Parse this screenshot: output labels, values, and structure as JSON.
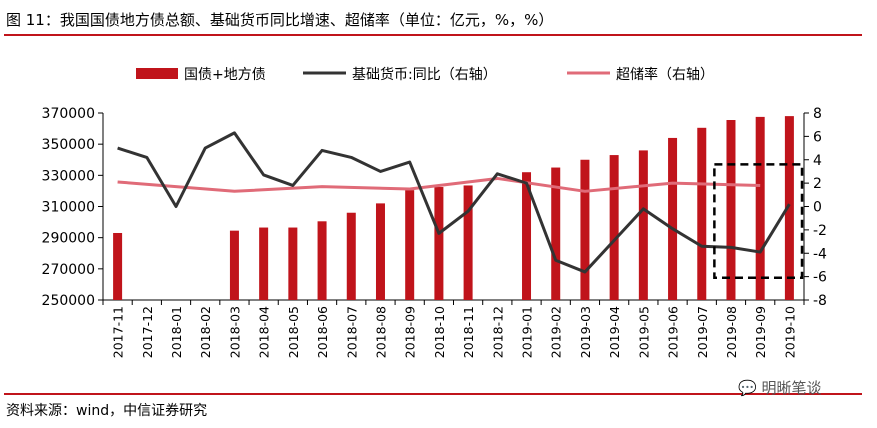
{
  "header": {
    "title": "图 11：我国国债地方债总额、基础货币同比增速、超储率（单位：亿元，%，%）"
  },
  "footer": {
    "source": "资料来源：wind，中信证券研究",
    "watermark": "明晰笔谈"
  },
  "colors": {
    "bar": "#c0141b",
    "line_base_money": "#333333",
    "line_excess_reserve": "#e06b78",
    "rule": "#c0141b"
  },
  "chart_data": {
    "type": "bar",
    "categories": [
      "2017-11",
      "2017-12",
      "2018-01",
      "2018-02",
      "2018-03",
      "2018-04",
      "2018-05",
      "2018-06",
      "2018-07",
      "2018-08",
      "2018-09",
      "2018-10",
      "2018-11",
      "2018-12",
      "2019-01",
      "2019-02",
      "2019-03",
      "2019-04",
      "2019-05",
      "2019-06",
      "2019-07",
      "2019-08",
      "2019-09",
      "2019-10"
    ],
    "legend": [
      "国债+地方债",
      "基础货币:同比（右轴）",
      "超储率（右轴）"
    ],
    "series": [
      {
        "name": "国债+地方债",
        "type": "bar",
        "axis": "left",
        "values": [
          293000,
          null,
          null,
          null,
          294500,
          296500,
          296500,
          300500,
          306000,
          312000,
          320500,
          322500,
          323500,
          null,
          332000,
          335000,
          340000,
          343000,
          346000,
          354000,
          360500,
          365500,
          367500,
          368000
        ]
      },
      {
        "name": "基础货币:同比（右轴）",
        "type": "line",
        "axis": "right",
        "values": [
          5.0,
          4.2,
          0.0,
          5.0,
          6.3,
          2.7,
          1.8,
          4.8,
          4.2,
          3.0,
          3.8,
          -2.3,
          -0.4,
          2.8,
          2.0,
          -4.6,
          -5.6,
          -2.9,
          -0.2,
          -1.9,
          -3.4,
          -3.5,
          -3.9,
          0.2
        ]
      },
      {
        "name": "超储率（右轴）",
        "type": "line",
        "axis": "right",
        "values": [
          2.1,
          null,
          null,
          null,
          1.3,
          null,
          null,
          1.7,
          null,
          null,
          1.5,
          null,
          null,
          2.4,
          null,
          null,
          1.3,
          null,
          null,
          2.0,
          null,
          null,
          1.8,
          null
        ]
      }
    ],
    "y_left": {
      "ylim": [
        250000,
        370000
      ],
      "ticks": [
        250000,
        270000,
        290000,
        310000,
        330000,
        350000,
        370000
      ]
    },
    "y_right": {
      "ylim": [
        -8,
        8
      ],
      "ticks": [
        -8,
        -6,
        -4,
        -2,
        0,
        2,
        4,
        6,
        8
      ]
    },
    "legend_position": "top",
    "annotation": "dashed box over 2019-08 to 2019-10",
    "grid": false
  }
}
